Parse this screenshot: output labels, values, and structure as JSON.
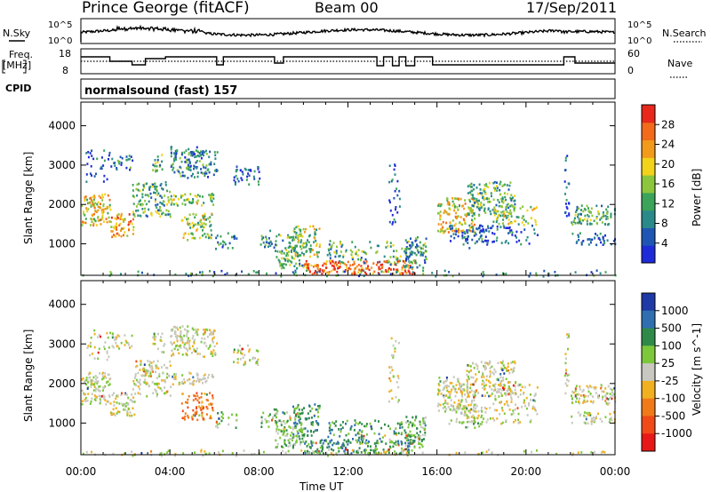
{
  "header": {
    "station": "Prince George (fitACF)",
    "beam": "Beam 00",
    "date": "17/Sep/2011"
  },
  "top_panels": {
    "nsky_label": "N.Sky",
    "nsky_top": "10^5",
    "nsky_bottom": "10^0",
    "nsearch_label": "N.Search",
    "nsearch_top": "10^5",
    "nsearch_bottom": "10^0",
    "freq_label_1": "Freq.",
    "freq_label_2": "[MHz]",
    "freq_top": "18",
    "freq_bottom": "8",
    "nave_label": "Nave",
    "nave_top": "60",
    "nave_bottom": "0",
    "cpid_label": "CPID",
    "cpid_value": "normalsound (fast) 157"
  },
  "chart_data": [
    {
      "type": "heatmap",
      "panel": "power",
      "ylabel": "Slant Range [km]",
      "xlabel": "",
      "ylim": [
        200,
        4600
      ],
      "yticks": [
        1000,
        2000,
        3000,
        4000
      ],
      "xticks": [
        "00:00",
        "04:00",
        "08:00",
        "12:00",
        "16:00",
        "20:00",
        "00:00"
      ],
      "colorbar": {
        "label": "Power [dB]",
        "ticks": [
          "4",
          "8",
          "12",
          "16",
          "20",
          "24",
          "28"
        ],
        "colors": [
          "#1f2bd9",
          "#1f56b3",
          "#2a8a8a",
          "#3ca35a",
          "#8cc63c",
          "#f2d21a",
          "#f29a1a",
          "#f26a1a",
          "#e8281a"
        ]
      }
    },
    {
      "type": "heatmap",
      "panel": "velocity",
      "ylabel": "Slant Range [km]",
      "xlabel": "Time UT",
      "ylim": [
        200,
        4600
      ],
      "yticks": [
        1000,
        2000,
        3000,
        4000
      ],
      "xticks": [
        "00:00",
        "04:00",
        "08:00",
        "12:00",
        "16:00",
        "20:00",
        "00:00"
      ],
      "colorbar": {
        "label": "Velocity [m s^-1]",
        "ticks": [
          "1000",
          "500",
          "100",
          "25",
          "-25",
          "-100",
          "-500",
          "-1000"
        ],
        "colors": [
          "#1f3aa6",
          "#2f6fb0",
          "#2f8a4a",
          "#7cc83a",
          "#c8c8c0",
          "#f0b020",
          "#f07a18",
          "#f04a18",
          "#e81818"
        ]
      }
    }
  ]
}
